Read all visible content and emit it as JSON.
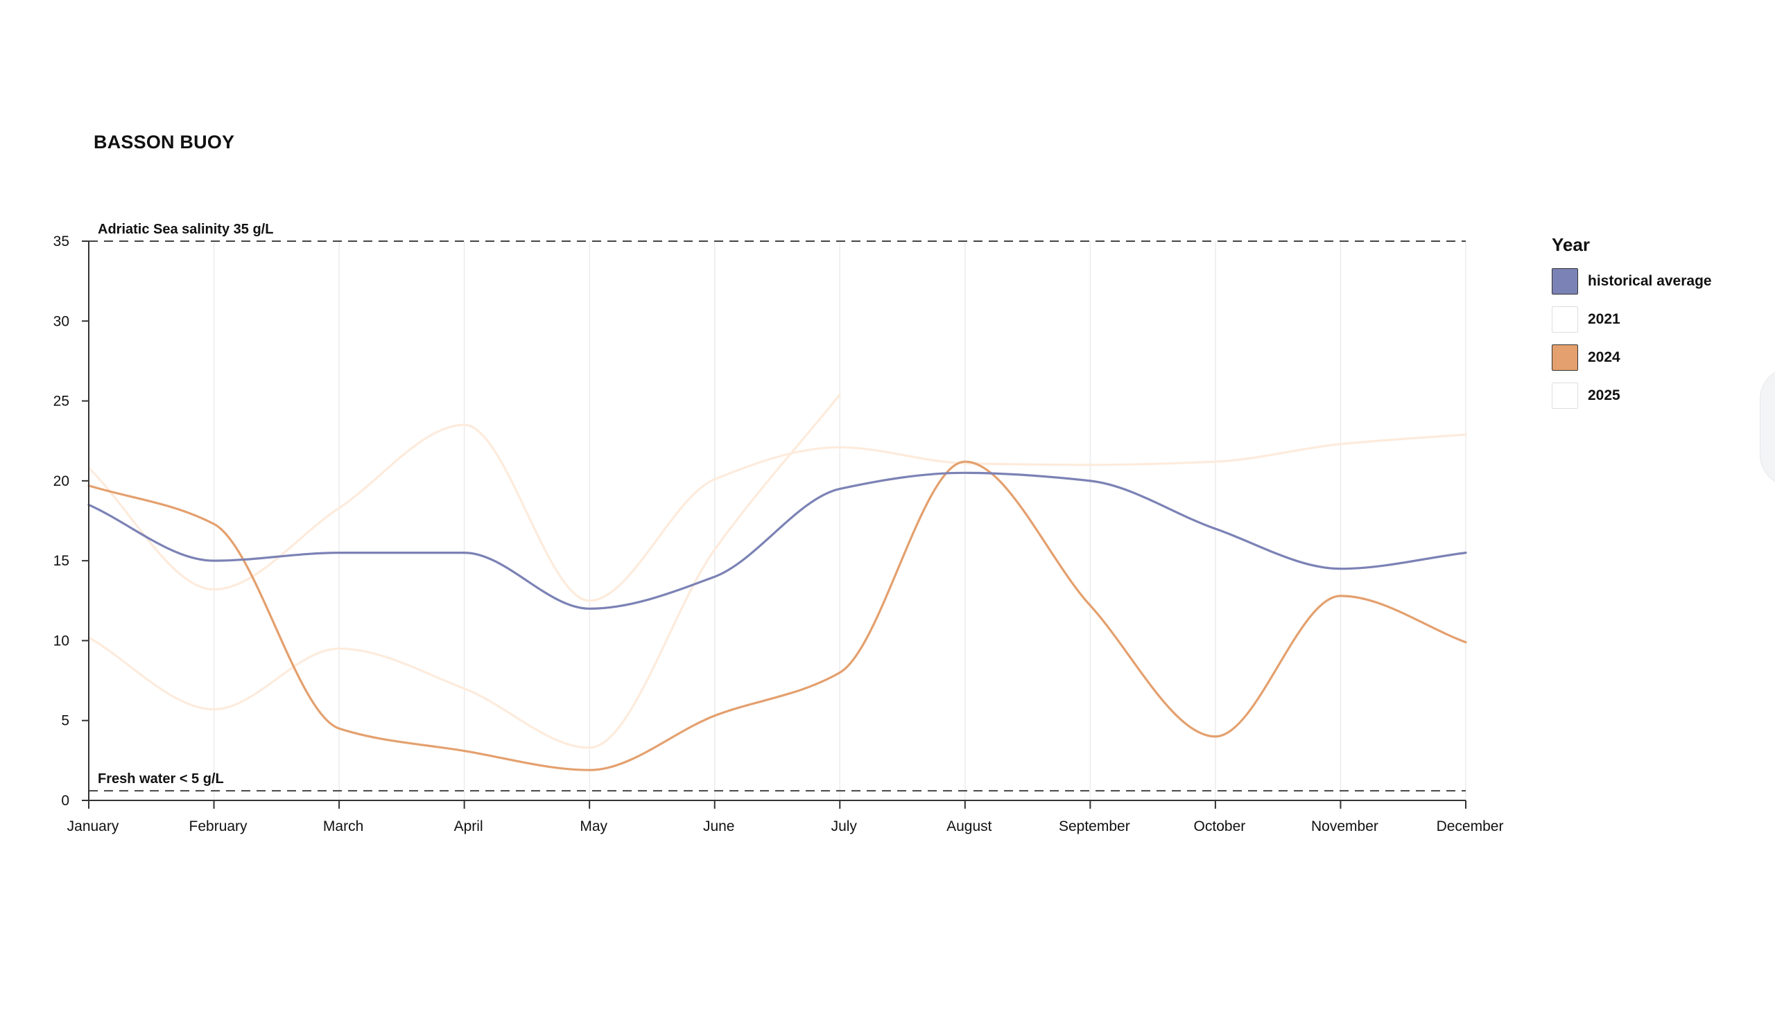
{
  "chart_data": {
    "type": "line",
    "title": "BASSON BUOY",
    "categories": [
      "January",
      "February",
      "March",
      "April",
      "May",
      "June",
      "July",
      "August",
      "September",
      "October",
      "November",
      "December"
    ],
    "ylim": [
      0,
      35
    ],
    "yticks": [
      0,
      5,
      10,
      15,
      20,
      25,
      30,
      35
    ],
    "grid": "vertical",
    "legend": {
      "title": "Year",
      "position": "right",
      "entries": [
        "historical average",
        "2021",
        "2024",
        "2025"
      ]
    },
    "reference_lines": [
      {
        "label": "Adriatic Sea salinity 35 g/L",
        "value": 35
      },
      {
        "label": "Fresh water < 5 g/L",
        "value": 0.6
      }
    ],
    "series": [
      {
        "name": "2021",
        "color": "#fdebdc",
        "values": [
          20.8,
          13.2,
          18.3,
          23.5,
          12.5,
          20.1,
          22.1,
          21.1,
          21.0,
          21.2,
          22.3,
          22.9
        ]
      },
      {
        "name": "2025",
        "color": "#fdebdc",
        "values": [
          10.2,
          5.7,
          9.5,
          7.0,
          3.3,
          15.7,
          25.4,
          null,
          null,
          null,
          null,
          null
        ]
      },
      {
        "name": "2024",
        "color": "#e4a06e",
        "values": [
          19.7,
          17.3,
          4.5,
          3.1,
          1.9,
          5.3,
          8.0,
          21.2,
          12.2,
          4.0,
          12.8,
          9.9
        ]
      },
      {
        "name": "historical average",
        "color": "#7b82b5",
        "values": [
          18.5,
          15.0,
          15.5,
          15.5,
          12.0,
          14.0,
          19.5,
          20.5,
          20.0,
          17.0,
          14.5,
          15.5
        ]
      }
    ]
  },
  "colors": {
    "axis": "#333333",
    "grid": "#ebebeb",
    "reference_line": "#444444"
  },
  "legend_swatches": [
    {
      "label": "historical average",
      "fill": "#7b82b5"
    },
    {
      "label": "2021",
      "fill": "#ffffff"
    },
    {
      "label": "2024",
      "fill": "#e4a06e"
    },
    {
      "label": "2025",
      "fill": "#ffffff"
    }
  ]
}
